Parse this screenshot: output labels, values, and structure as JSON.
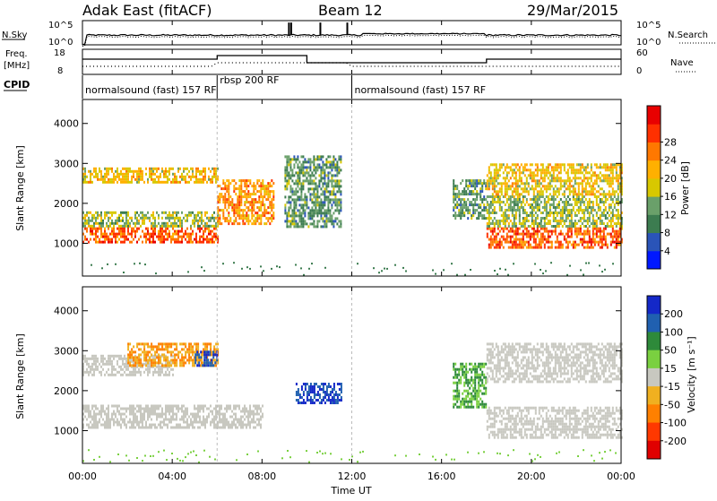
{
  "header": {
    "station": "Adak East (fitACF)",
    "beam": "Beam 12",
    "date": "29/Mar/2015"
  },
  "top_panel": {
    "left_label": "N.Sky",
    "right_label": "N.Search",
    "left_ticks": [
      "10^5",
      "10^0"
    ],
    "right_ticks": [
      "10^5",
      "10^0"
    ]
  },
  "freq_panel": {
    "left_label_1": "Freq.",
    "left_label_2": "[MHz]",
    "left_ticks": [
      "18",
      "8"
    ],
    "right_label": "Nave",
    "right_ticks": [
      "60",
      "0"
    ]
  },
  "cpid": {
    "label": "CPID",
    "segments": [
      {
        "text": "normalsound (fast) 157 RF",
        "start_h": 0
      },
      {
        "text": "rbsp 200 RF",
        "start_h": 6
      },
      {
        "text": "normalsound (fast) 157 RF",
        "start_h": 12
      }
    ]
  },
  "x_axis": {
    "label": "Time UT",
    "ticks": [
      "00:00",
      "04:00",
      "08:00",
      "12:00",
      "16:00",
      "20:00",
      "00:00"
    ],
    "range_h": [
      0,
      24
    ]
  },
  "power_panel": {
    "ylabel": "Slant Range [km]",
    "yticks": [
      "1000",
      "2000",
      "3000",
      "4000"
    ],
    "colorbar_label": "Power [dB]",
    "colorbar_ticks": [
      "4",
      "8",
      "12",
      "16",
      "20",
      "24",
      "28"
    ],
    "colorbar_colors": [
      "#0018ff",
      "#2a54b8",
      "#3c7c50",
      "#6aa06a",
      "#d8c800",
      "#ffb000",
      "#ff7800",
      "#ff3000",
      "#e80000"
    ]
  },
  "velocity_panel": {
    "ylabel": "Slant Range [km]",
    "yticks": [
      "1000",
      "2000",
      "3000",
      "4000"
    ],
    "colorbar_label": "Velocity [m s⁻¹]",
    "colorbar_ticks": [
      "200",
      "100",
      "50",
      "15",
      "-15",
      "-50",
      "-100",
      "-200"
    ],
    "colorbar_colors": [
      "#1428c8",
      "#2060b0",
      "#2e8a3a",
      "#7ad040",
      "#c8c8c0",
      "#f0b020",
      "#ff8000",
      "#ff3800",
      "#e00000"
    ]
  },
  "chart_data": {
    "type": "heatmap",
    "x_units": "hours UT",
    "y_units": "km",
    "ylim": [
      180,
      4600
    ],
    "power_echo_bands": [
      {
        "start_h": 0.0,
        "end_h": 6.0,
        "range_km": [
          1050,
          1400
        ],
        "power_db": 28
      },
      {
        "start_h": 0.0,
        "end_h": 6.0,
        "range_km": [
          1400,
          1800
        ],
        "power_db": 16
      },
      {
        "start_h": 0.0,
        "end_h": 6.0,
        "range_km": [
          2500,
          2900
        ],
        "power_db": 20
      },
      {
        "start_h": 6.0,
        "end_h": 8.5,
        "range_km": [
          1500,
          2600
        ],
        "power_db": 24
      },
      {
        "start_h": 9.0,
        "end_h": 11.5,
        "range_km": [
          1400,
          3200
        ],
        "power_db": 12
      },
      {
        "start_h": 16.5,
        "end_h": 18.0,
        "range_km": [
          1600,
          2600
        ],
        "power_db": 12
      },
      {
        "start_h": 18.0,
        "end_h": 24.0,
        "range_km": [
          900,
          1400
        ],
        "power_db": 28
      },
      {
        "start_h": 18.0,
        "end_h": 24.0,
        "range_km": [
          1400,
          2200
        ],
        "power_db": 16
      },
      {
        "start_h": 18.0,
        "end_h": 24.0,
        "range_km": [
          2200,
          3000
        ],
        "power_db": 20
      }
    ],
    "velocity_echo_bands": [
      {
        "start_h": 0.0,
        "end_h": 8.0,
        "range_km": [
          1050,
          1650
        ],
        "velocity_ms": 0
      },
      {
        "start_h": 0.0,
        "end_h": 4.0,
        "range_km": [
          2400,
          2900
        ],
        "velocity_ms": 0
      },
      {
        "start_h": 2.0,
        "end_h": 6.0,
        "range_km": [
          2600,
          3200
        ],
        "velocity_ms": -50
      },
      {
        "start_h": 5.0,
        "end_h": 6.0,
        "range_km": [
          2600,
          3000
        ],
        "velocity_ms": 200
      },
      {
        "start_h": 9.5,
        "end_h": 11.5,
        "range_km": [
          1700,
          2200
        ],
        "velocity_ms": 200
      },
      {
        "start_h": 16.5,
        "end_h": 18.0,
        "range_km": [
          1600,
          2700
        ],
        "velocity_ms": 50
      },
      {
        "start_h": 18.0,
        "end_h": 24.0,
        "range_km": [
          850,
          1600
        ],
        "velocity_ms": 0
      },
      {
        "start_h": 18.0,
        "end_h": 24.0,
        "range_km": [
          2200,
          3200
        ],
        "velocity_ms": 0
      }
    ],
    "frequency_mhz": [
      {
        "start_h": 0,
        "end_h": 6,
        "value": 14.5
      },
      {
        "start_h": 6,
        "end_h": 10,
        "value": 16.5
      },
      {
        "start_h": 10,
        "end_h": 18,
        "value": 12.5
      },
      {
        "start_h": 18,
        "end_h": 24,
        "value": 14.5
      }
    ],
    "noise_sky_log10": 2.0
  }
}
